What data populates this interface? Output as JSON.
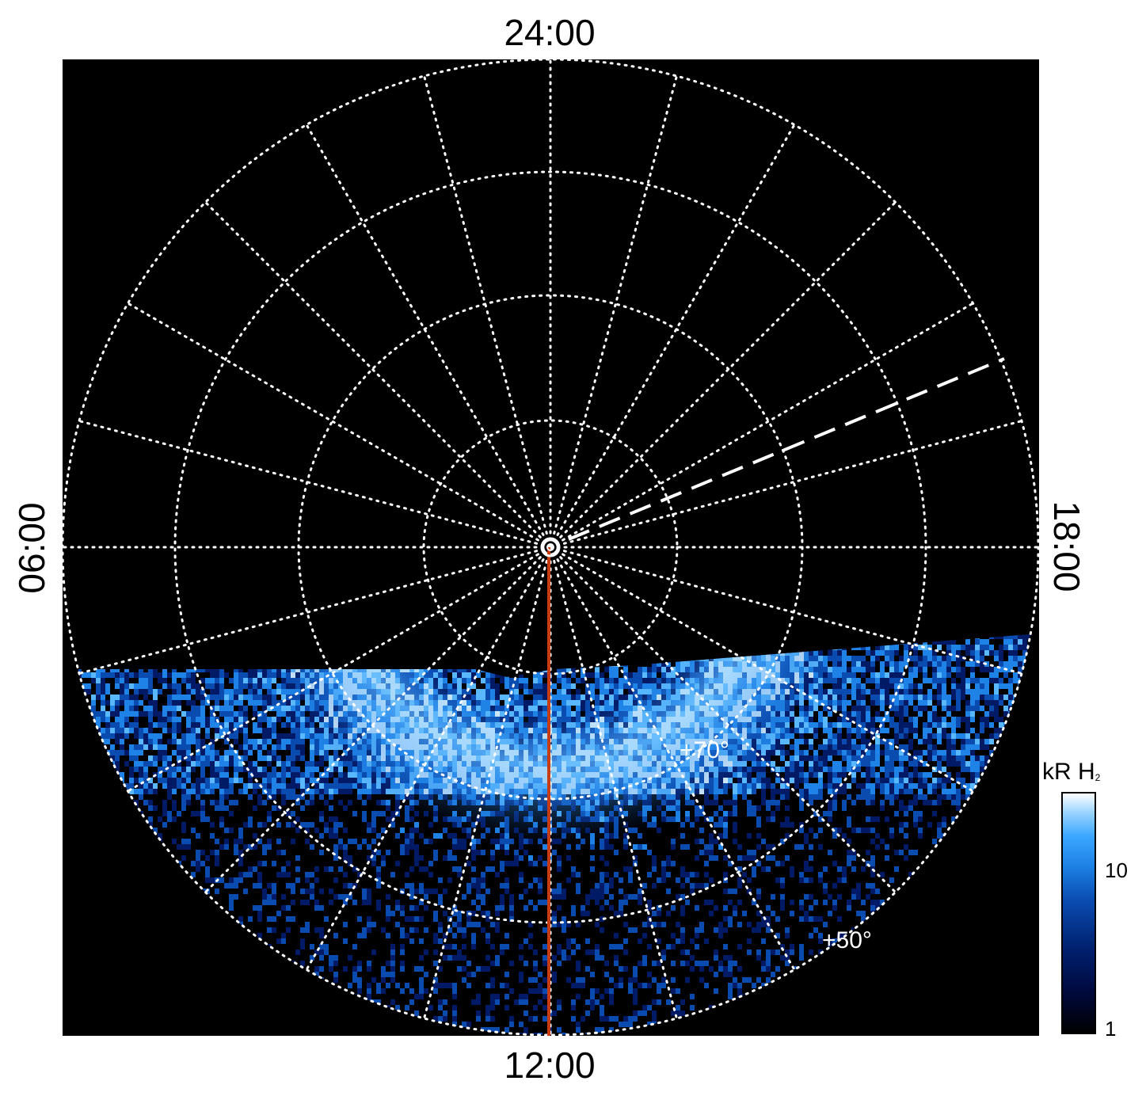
{
  "map": {
    "projection": "polar (north pole view), local time vs latitude",
    "local_time_labels": {
      "top": "24:00",
      "bottom": "12:00",
      "left": "06:00",
      "right": "18:00"
    },
    "latitude_labels": [
      "+70°",
      "+50°"
    ],
    "background": "#000000",
    "grid_color": "#ffffff",
    "meridian_line_color": "#c83c14",
    "intensity_colors": [
      "#000000",
      "#001a66",
      "#0a4bb0",
      "#1e82e6",
      "#59b8ff",
      "#d9f0ff"
    ]
  },
  "colorbar": {
    "title": "kR H",
    "title_subscript": "2",
    "ticks": [
      "1",
      "10"
    ],
    "scale": "log"
  }
}
